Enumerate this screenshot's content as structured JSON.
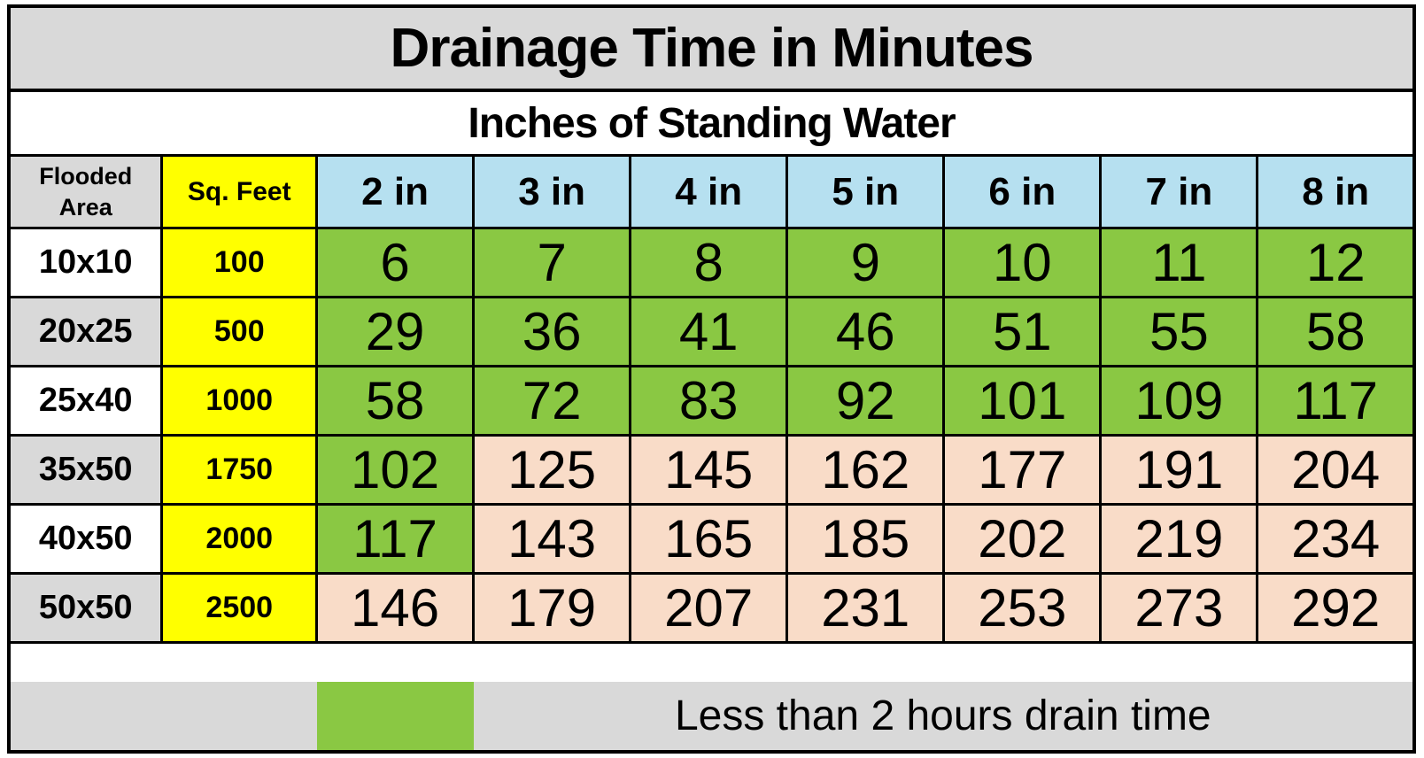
{
  "chart_data": {
    "type": "table",
    "title": "Drainage Time in Minutes",
    "subtitle": "Inches of Standing Water",
    "header": {
      "area_label": "Flooded Area",
      "sqft_label": "Sq. Feet",
      "water_columns": [
        "2 in",
        "3 in",
        "4 in",
        "5 in",
        "6 in",
        "7 in",
        "8 in"
      ]
    },
    "rows": [
      {
        "area": "10x10",
        "sq_feet": "100",
        "minutes": [
          6,
          7,
          8,
          9,
          10,
          11,
          12
        ],
        "highlight": [
          "green",
          "green",
          "green",
          "green",
          "green",
          "green",
          "green"
        ]
      },
      {
        "area": "20x25",
        "sq_feet": "500",
        "minutes": [
          29,
          36,
          41,
          46,
          51,
          55,
          58
        ],
        "highlight": [
          "green",
          "green",
          "green",
          "green",
          "green",
          "green",
          "green"
        ]
      },
      {
        "area": "25x40",
        "sq_feet": "1000",
        "minutes": [
          58,
          72,
          83,
          92,
          101,
          109,
          117
        ],
        "highlight": [
          "green",
          "green",
          "green",
          "green",
          "green",
          "green",
          "green"
        ]
      },
      {
        "area": "35x50",
        "sq_feet": "1750",
        "minutes": [
          102,
          125,
          145,
          162,
          177,
          191,
          204
        ],
        "highlight": [
          "green",
          "pink",
          "pink",
          "pink",
          "pink",
          "pink",
          "pink"
        ]
      },
      {
        "area": "40x50",
        "sq_feet": "2000",
        "minutes": [
          117,
          143,
          165,
          185,
          202,
          219,
          234
        ],
        "highlight": [
          "green",
          "pink",
          "pink",
          "pink",
          "pink",
          "pink",
          "pink"
        ]
      },
      {
        "area": "50x50",
        "sq_feet": "2500",
        "minutes": [
          146,
          179,
          207,
          231,
          253,
          273,
          292
        ],
        "highlight": [
          "pink",
          "pink",
          "pink",
          "pink",
          "pink",
          "pink",
          "pink"
        ]
      }
    ],
    "legend": {
      "label": "Less than 2 hours drain time",
      "swatch": "green",
      "threshold_minutes": 120
    }
  },
  "colors": {
    "banner_gray": "#d9d9d9",
    "header_blue": "#b6e0f0",
    "sqft_yellow": "#ffff00",
    "under_2h_green": "#8ac843",
    "over_2h_pink": "#f9dcc8",
    "border_black": "#000000"
  }
}
